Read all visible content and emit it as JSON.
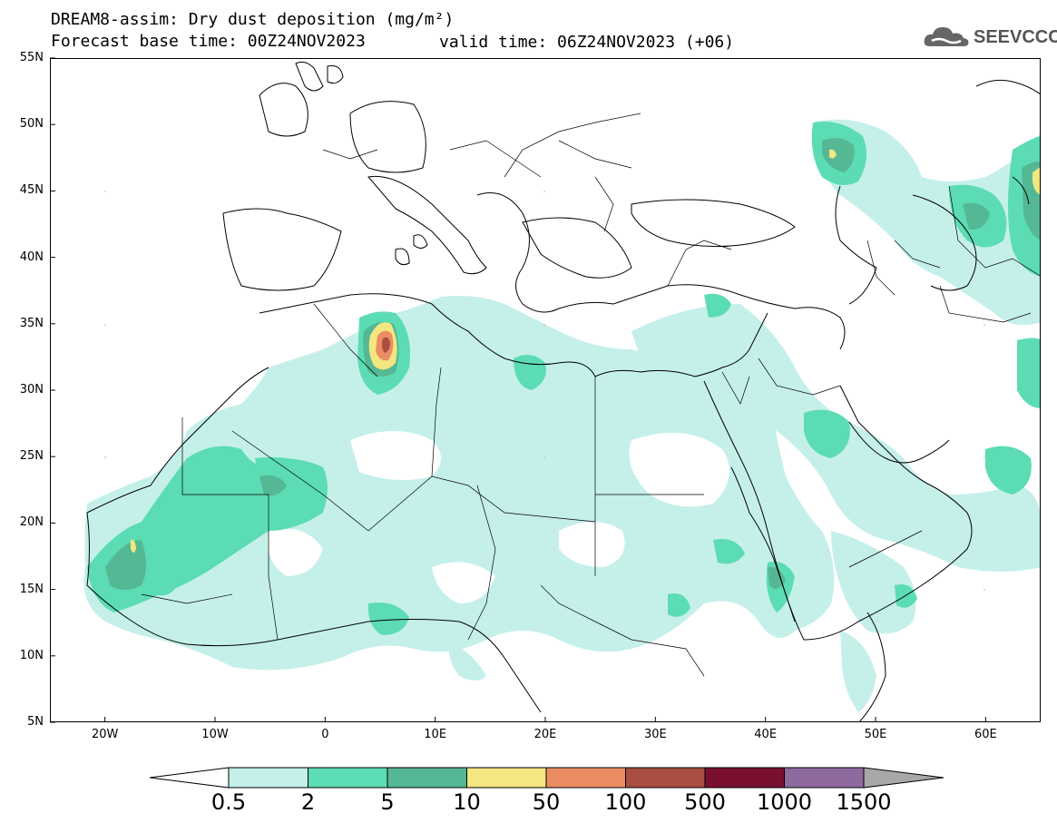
{
  "title": {
    "line1": "DREAM8-assim: Dry dust deposition (mg/m²)",
    "line2": "Forecast base time: 00Z24NOV2023",
    "valid": "valid time: 06Z24NOV2023 (+06)"
  },
  "logo": {
    "text": "SEEVCCC",
    "icon": "cloud-icon"
  },
  "axes": {
    "lat_labels": [
      "55N",
      "50N",
      "45N",
      "40N",
      "35N",
      "30N",
      "25N",
      "20N",
      "15N",
      "10N",
      "5N"
    ],
    "lon_labels": [
      "20W",
      "10W",
      "0",
      "10E",
      "20E",
      "30E",
      "40E",
      "50E",
      "60E"
    ]
  },
  "colorbar": {
    "labels": [
      "0.5",
      "2",
      "5",
      "10",
      "50",
      "100",
      "500",
      "1000",
      "1500"
    ],
    "colors": [
      "#c5f0ea",
      "#5cdcb4",
      "#55b894",
      "#f4e680",
      "#ec8c64",
      "#a94e40",
      "#7a1030",
      "#8f6a9e",
      "#a8a8a8"
    ]
  },
  "map_colors": {
    "land_outline": "#000000",
    "light": "#c5f0ea",
    "green": "#5cdcb4",
    "dark": "#55b894",
    "yellow": "#f4e680",
    "orange": "#ec8c64",
    "red": "#a94e40"
  }
}
